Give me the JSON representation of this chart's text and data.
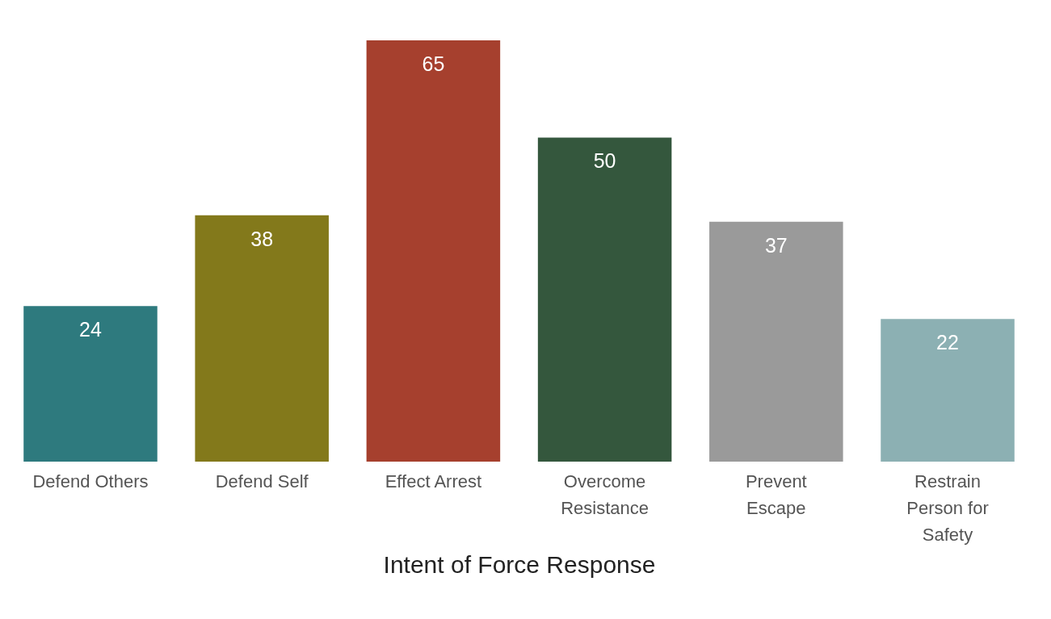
{
  "chart_data": {
    "type": "bar",
    "xlabel": "Intent of Force Response",
    "categories": [
      "Defend Others",
      "Defend Self",
      "Effect Arrest",
      "Overcome Resistance",
      "Prevent Escape",
      "Restrain Person for Safety"
    ],
    "values": [
      24,
      38,
      65,
      50,
      37,
      22
    ],
    "colors": [
      "#2e7a7e",
      "#83791b",
      "#a6402e",
      "#34573d",
      "#9a9a9a",
      "#8cb0b3"
    ],
    "data_labels": true
  }
}
